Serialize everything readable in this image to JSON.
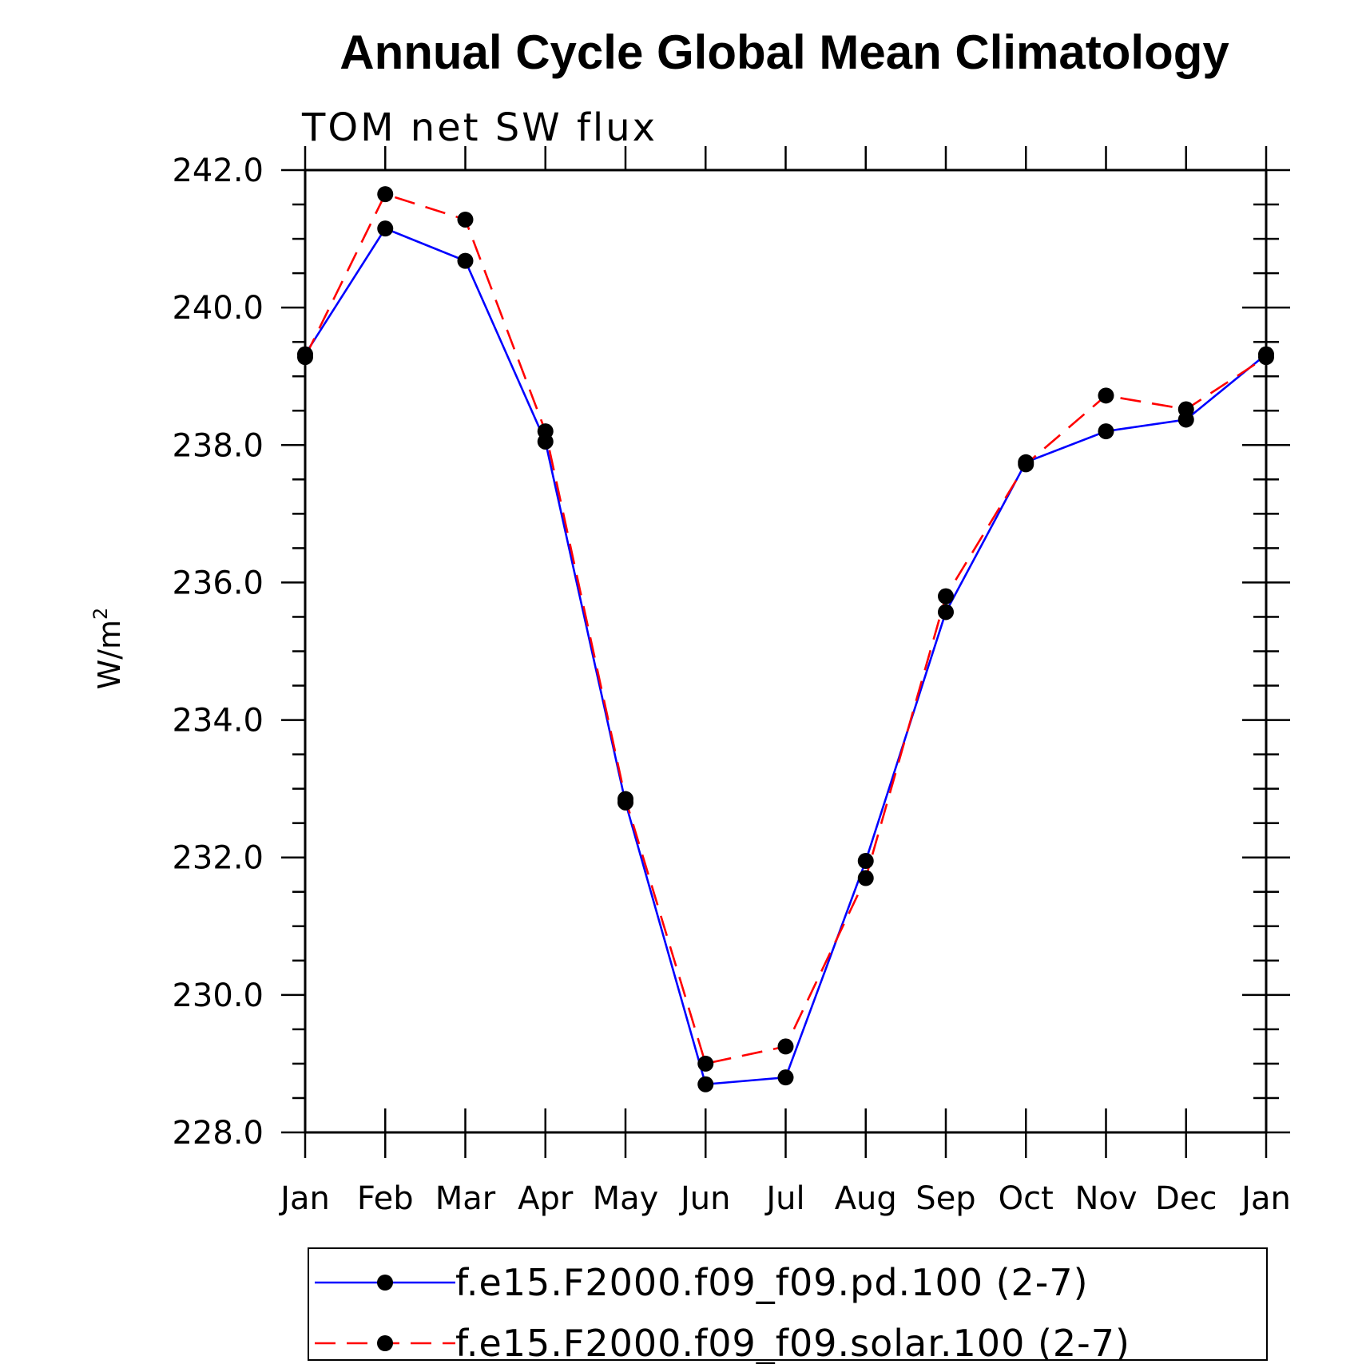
{
  "chart_data": {
    "type": "line",
    "title": "Annual Cycle Global Mean Climatology",
    "subtitle": "TOM net SW flux",
    "xlabel": "",
    "ylabel": "W/m",
    "ylabel_superscript": "2",
    "categories": [
      "Jan",
      "Feb",
      "Mar",
      "Apr",
      "May",
      "Jun",
      "Jul",
      "Aug",
      "Sep",
      "Oct",
      "Nov",
      "Dec",
      "Jan"
    ],
    "ylim": [
      228.0,
      242.0
    ],
    "y_ticks": [
      "228.0",
      "230.0",
      "232.0",
      "234.0",
      "236.0",
      "238.0",
      "240.0",
      "242.0"
    ],
    "y_tick_values": [
      228,
      230,
      232,
      234,
      236,
      238,
      240,
      242
    ],
    "series": [
      {
        "name": "f.e15.F2000.f09_f09.pd.100 (2-7)",
        "color": "#0000ff",
        "dash": "solid",
        "values": [
          239.32,
          241.15,
          240.68,
          238.05,
          232.8,
          228.7,
          228.8,
          231.95,
          235.57,
          237.75,
          238.2,
          238.37,
          239.32
        ]
      },
      {
        "name": "f.e15.F2000.f09_f09.solar.100 (2-7)",
        "color": "#ff0000",
        "dash": "dashed",
        "values": [
          239.28,
          241.65,
          241.28,
          238.2,
          232.85,
          229.0,
          229.25,
          231.7,
          235.8,
          237.72,
          238.72,
          238.52,
          239.28
        ]
      }
    ],
    "marker_color": "#000000",
    "legend_position": "bottom"
  }
}
